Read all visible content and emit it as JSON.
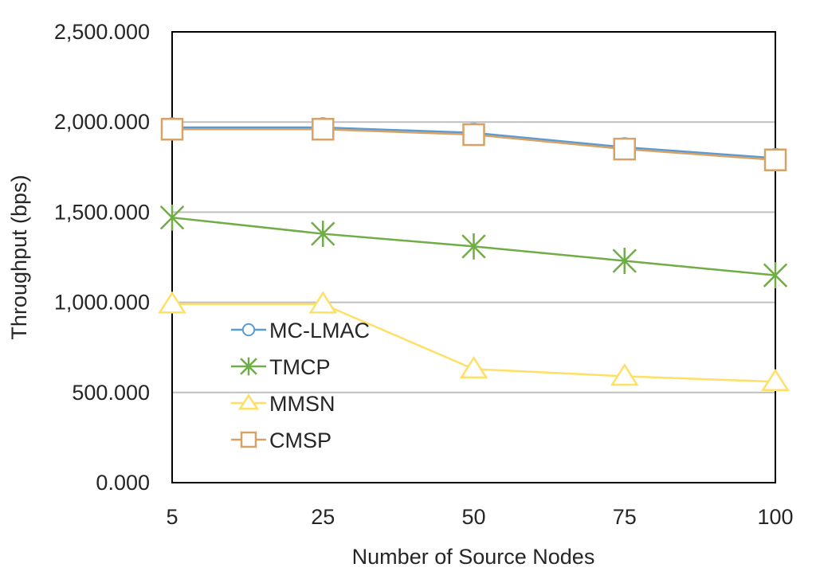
{
  "chart_data": {
    "type": "line",
    "title": "",
    "xlabel": "Number of Source Nodes",
    "ylabel": "Throughput (bps)",
    "categories": [
      "5",
      "25",
      "50",
      "75",
      "100"
    ],
    "ylim": [
      0,
      2500
    ],
    "yticks": [
      0,
      500,
      1000,
      1500,
      2000,
      2500
    ],
    "ytick_labels": [
      "0.000",
      "500.000",
      "1,000.000",
      "1,500.000",
      "2,000.000",
      "2,500.000"
    ],
    "grid": true,
    "legend_position": "lower-left inside",
    "series": [
      {
        "name": "MC-LMAC",
        "marker": "circle",
        "color": "#5b9bd5",
        "values": [
          1970,
          1970,
          1940,
          1860,
          1800
        ]
      },
      {
        "name": "TMCP",
        "marker": "asterisk",
        "color": "#70ad47",
        "values": [
          1470,
          1380,
          1310,
          1230,
          1150
        ]
      },
      {
        "name": "MMSN",
        "marker": "triangle",
        "color": "#ffe066",
        "values": [
          990,
          990,
          630,
          590,
          560
        ]
      },
      {
        "name": "CMSP",
        "marker": "square",
        "color": "#d6a266",
        "values": [
          1960,
          1960,
          1930,
          1850,
          1790
        ]
      }
    ]
  }
}
